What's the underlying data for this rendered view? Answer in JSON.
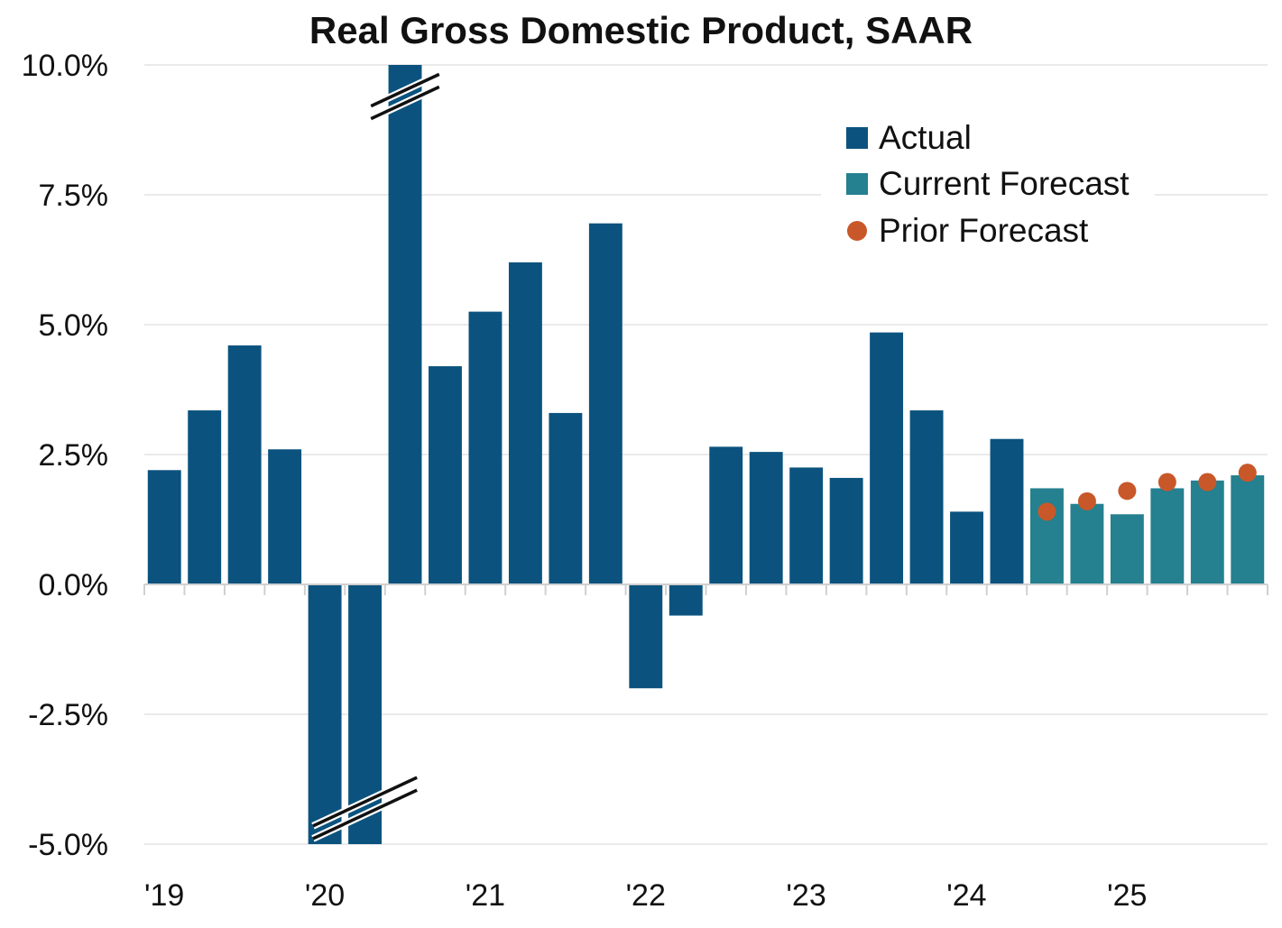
{
  "chart_data": {
    "type": "bar",
    "title": "Real Gross Domestic Product, SAAR",
    "xlabel": "",
    "ylabel": "",
    "ylim": [
      -5.0,
      10.0
    ],
    "y_ticks": [
      "10.0%",
      "7.5%",
      "5.0%",
      "2.5%",
      "0.0%",
      "-2.5%",
      "-5.0%"
    ],
    "y_tick_values": [
      10.0,
      7.5,
      5.0,
      2.5,
      0.0,
      -2.5,
      -5.0
    ],
    "x_tick_labels": [
      "'19",
      "'20",
      "'21",
      "'22",
      "'23",
      "'24",
      "'25"
    ],
    "grid": "horizontal",
    "legend_position": "top-right",
    "axis_break_quarters": [
      "2020-Q2",
      "2020-Q3"
    ],
    "categories": [
      "2019-Q1",
      "2019-Q2",
      "2019-Q3",
      "2019-Q4",
      "2020-Q1",
      "2020-Q2",
      "2020-Q3",
      "2020-Q4",
      "2021-Q1",
      "2021-Q2",
      "2021-Q3",
      "2021-Q4",
      "2022-Q1",
      "2022-Q2",
      "2022-Q3",
      "2022-Q4",
      "2023-Q1",
      "2023-Q2",
      "2023-Q3",
      "2023-Q4",
      "2024-Q1",
      "2024-Q2",
      "2024-Q3",
      "2024-Q4",
      "2025-Q1",
      "2025-Q2",
      "2025-Q3",
      "2025-Q4"
    ],
    "series": [
      {
        "name": "Actual",
        "color": "#0b537e",
        "values": [
          2.2,
          3.35,
          4.6,
          2.6,
          -5.0,
          -5.0,
          10.0,
          4.2,
          5.25,
          6.2,
          3.3,
          6.95,
          -2.0,
          -0.6,
          2.65,
          2.55,
          2.25,
          2.05,
          4.85,
          3.35,
          1.4,
          2.8,
          null,
          null,
          null,
          null,
          null,
          null
        ]
      },
      {
        "name": "Current Forecast",
        "color": "#25808f",
        "values": [
          null,
          null,
          null,
          null,
          null,
          null,
          null,
          null,
          null,
          null,
          null,
          null,
          null,
          null,
          null,
          null,
          null,
          null,
          null,
          null,
          null,
          null,
          1.85,
          1.55,
          1.35,
          1.85,
          2.0,
          2.1
        ]
      },
      {
        "name": "Prior Forecast",
        "color": "#c8582a",
        "values": [
          null,
          null,
          null,
          null,
          null,
          null,
          null,
          null,
          null,
          null,
          null,
          null,
          null,
          null,
          null,
          null,
          null,
          null,
          null,
          null,
          null,
          null,
          1.4,
          1.6,
          1.8,
          1.97,
          1.97,
          2.15
        ]
      }
    ]
  }
}
